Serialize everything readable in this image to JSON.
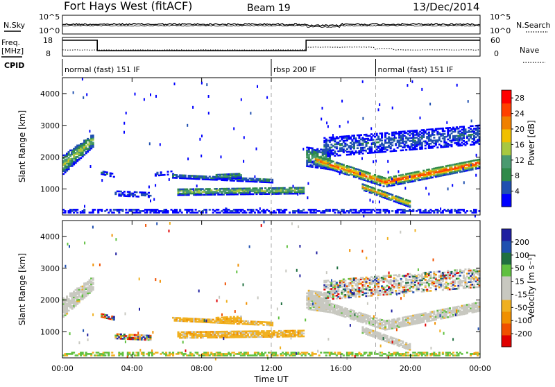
{
  "header": {
    "title": "Fort Hays West (fitACF)",
    "beam": "Beam 19",
    "date": "13/Dec/2014"
  },
  "top_panels": {
    "nsky_label": "N.Sky",
    "nsky_ticks": [
      "10^5",
      "10^0"
    ],
    "nsearch_label": "N.Search",
    "nsearch_ticks": [
      "10^5",
      "10^0"
    ],
    "freq_label_line1": "Freq.",
    "freq_label_line2": "[MHz]",
    "freq_ticks": [
      "18",
      "8"
    ],
    "nave_label": "Nave",
    "nave_ticks": [
      "60",
      "0"
    ],
    "cpid_label": "CPID",
    "cpid_segments": [
      {
        "label": "normal (fast) 151 IF",
        "start_hour": 0
      },
      {
        "label": "rbsp 200 IF",
        "start_hour": 12
      },
      {
        "label": "normal (fast) 151 IF",
        "start_hour": 18
      }
    ],
    "freq_steps": [
      {
        "start_hour": 0,
        "end_hour": 2,
        "level": "high"
      },
      {
        "start_hour": 2,
        "end_hour": 14,
        "level": "low"
      },
      {
        "start_hour": 14,
        "end_hour": 24,
        "level": "high"
      }
    ]
  },
  "x_axis": {
    "label": "Time UT",
    "ticks": [
      "00:00",
      "04:00",
      "08:00",
      "12:00",
      "16:00",
      "20:00",
      "00:00"
    ],
    "tick_hours": [
      0,
      4,
      8,
      12,
      16,
      20,
      24
    ]
  },
  "colors": {
    "power": [
      "#0000ff",
      "#2050b0",
      "#2f8a4a",
      "#4a9a70",
      "#a8c840",
      "#f0c000",
      "#f08000",
      "#ff4000",
      "#ff0000"
    ],
    "velocity": [
      "#e00000",
      "#f05000",
      "#f09000",
      "#f0b020",
      "#c8c8c0",
      "#c8c8c0",
      "#60c040",
      "#207040",
      "#2050b0",
      "#2020a0"
    ]
  },
  "chart_data": [
    {
      "type": "heatmap",
      "name": "power",
      "xlabel": "Time UT",
      "ylabel": "Slant Range [km]",
      "xlim": [
        0,
        24
      ],
      "ylim": [
        180,
        4500
      ],
      "yticks": [
        "1000",
        "2000",
        "3000",
        "4000"
      ],
      "ytick_values": [
        1000,
        2000,
        3000,
        4000
      ],
      "colorbar_label": "Power [dB]",
      "colorbar_ticks": [
        "4",
        "8",
        "12",
        "16",
        "20",
        "24",
        "28"
      ],
      "colorbar_range": [
        0,
        30
      ],
      "dashed_time_markers": [
        12,
        18
      ],
      "echo_regions": [
        {
          "t0": 0.0,
          "t1": 1.8,
          "r_start": 1550,
          "r_end": 2450,
          "r_start2": 1950,
          "r_end2": 2650,
          "width": 380,
          "peak": 16
        },
        {
          "t0": 2.2,
          "t1": 3.0,
          "r_start": 1500,
          "r_end": 1400,
          "width": 100,
          "peak": 6
        },
        {
          "t0": 3.0,
          "t1": 5.0,
          "r_start": 850,
          "r_end": 800,
          "width": 150,
          "peak": 6
        },
        {
          "t0": 5.3,
          "t1": 6.3,
          "r_start": 1450,
          "r_end": 1500,
          "width": 100,
          "peak": 5
        },
        {
          "t0": 6.3,
          "t1": 12.0,
          "r_start": 1400,
          "r_end": 1250,
          "width": 130,
          "peak": 8
        },
        {
          "t0": 6.6,
          "t1": 13.8,
          "r_start": 900,
          "r_end": 950,
          "width": 220,
          "peak": 15
        },
        {
          "t0": 8.8,
          "t1": 10.2,
          "r_start": 1380,
          "r_end": 1420,
          "width": 180,
          "peak": 9
        },
        {
          "t0": 14.0,
          "t1": 15.3,
          "r_start": 2000,
          "r_end": 1900,
          "width": 600,
          "peak": 12
        },
        {
          "t0": 14.5,
          "t1": 18.5,
          "r_start": 1900,
          "r_end": 1200,
          "width": 300,
          "peak": 25
        },
        {
          "t0": 18.5,
          "t1": 24.0,
          "r_start": 1200,
          "r_end": 1800,
          "width": 300,
          "peak": 27
        },
        {
          "t0": 17.2,
          "t1": 20.0,
          "r_start": 1050,
          "r_end": 500,
          "width": 200,
          "peak": 22
        },
        {
          "t0": 15.0,
          "t1": 24.0,
          "r_start": 2300,
          "r_end": 2700,
          "width": 600,
          "peak": 6
        },
        {
          "t0": 0.0,
          "t1": 24.0,
          "r_start": 300,
          "r_end": 300,
          "width": 120,
          "peak": 4
        }
      ]
    },
    {
      "type": "heatmap",
      "name": "velocity",
      "xlabel": "Time UT",
      "ylabel": "Slant Range [km]",
      "xlim": [
        0,
        24
      ],
      "ylim": [
        180,
        4500
      ],
      "yticks": [
        "1000",
        "2000",
        "3000",
        "4000"
      ],
      "ytick_values": [
        1000,
        2000,
        3000,
        4000
      ],
      "colorbar_label": "Velocity [m s⁻¹]",
      "colorbar_ticks": [
        "-200",
        "-100",
        "-50",
        "-15",
        "15",
        "50",
        "100",
        "200"
      ],
      "dashed_time_markers": [
        12,
        18
      ],
      "echo_regions": [
        {
          "t0": 0.0,
          "t1": 1.8,
          "r_start": 1550,
          "r_end": 2450,
          "r_start2": 1950,
          "r_end2": 2650,
          "width": 380,
          "v": "gray"
        },
        {
          "t0": 2.2,
          "t1": 3.0,
          "r_start": 1500,
          "r_end": 1400,
          "width": 100,
          "v": "mixed"
        },
        {
          "t0": 3.0,
          "t1": 5.0,
          "r_start": 850,
          "r_end": 800,
          "width": 150,
          "v": "mixed"
        },
        {
          "t0": 6.3,
          "t1": 12.0,
          "r_start": 1400,
          "r_end": 1250,
          "width": 130,
          "v": "orange"
        },
        {
          "t0": 6.6,
          "t1": 13.8,
          "r_start": 900,
          "r_end": 950,
          "width": 220,
          "v": "orange"
        },
        {
          "t0": 8.8,
          "t1": 10.2,
          "r_start": 1380,
          "r_end": 1420,
          "width": 180,
          "v": "orange"
        },
        {
          "t0": 14.0,
          "t1": 15.3,
          "r_start": 2000,
          "r_end": 1900,
          "width": 600,
          "v": "gray"
        },
        {
          "t0": 14.5,
          "t1": 18.5,
          "r_start": 1900,
          "r_end": 1200,
          "width": 300,
          "v": "gray"
        },
        {
          "t0": 18.5,
          "t1": 24.0,
          "r_start": 1200,
          "r_end": 1800,
          "width": 300,
          "v": "gray"
        },
        {
          "t0": 17.2,
          "t1": 20.0,
          "r_start": 1050,
          "r_end": 500,
          "width": 200,
          "v": "gray"
        },
        {
          "t0": 15.0,
          "t1": 24.0,
          "r_start": 2300,
          "r_end": 2700,
          "width": 600,
          "v": "sparse"
        },
        {
          "t0": 0.0,
          "t1": 24.0,
          "r_start": 300,
          "r_end": 300,
          "width": 120,
          "v": "green"
        }
      ]
    }
  ]
}
